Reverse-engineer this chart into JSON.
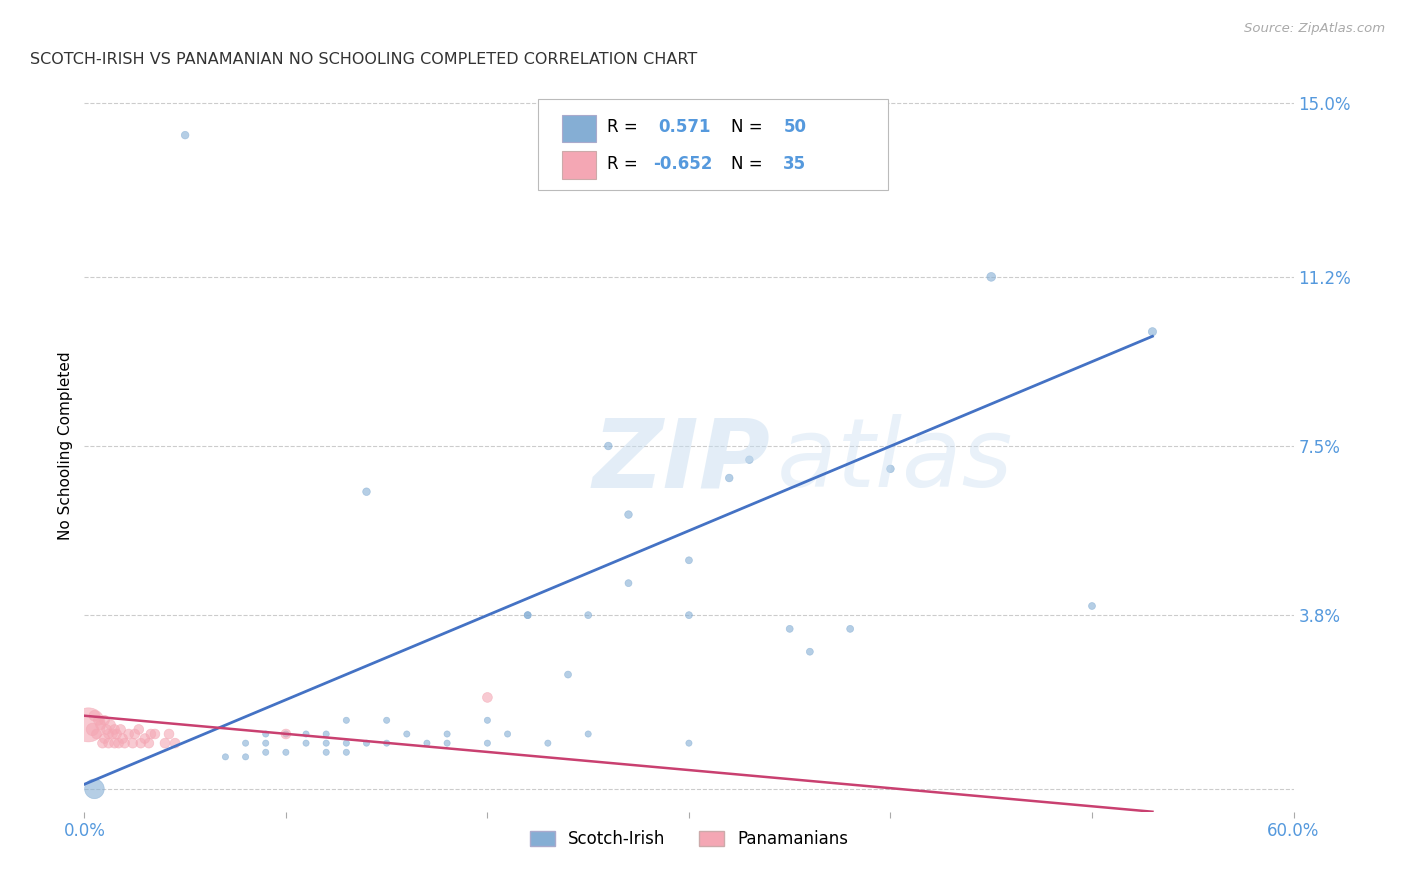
{
  "title": "SCOTCH-IRISH VS PANAMANIAN NO SCHOOLING COMPLETED CORRELATION CHART",
  "source": "Source: ZipAtlas.com",
  "ylabel": "No Schooling Completed",
  "xlim": [
    0.0,
    0.6
  ],
  "ylim": [
    -0.005,
    0.155
  ],
  "ytick_vals": [
    0.0,
    0.038,
    0.075,
    0.112,
    0.15
  ],
  "ytick_labels": [
    "",
    "3.8%",
    "7.5%",
    "11.2%",
    "15.0%"
  ],
  "xtick_vals": [
    0.0,
    0.1,
    0.2,
    0.3,
    0.4,
    0.5,
    0.6
  ],
  "xtick_labels": [
    "0.0%",
    "",
    "",
    "",
    "",
    "",
    "60.0%"
  ],
  "grid_color": "#cccccc",
  "background_color": "#ffffff",
  "legend_R1": "R =  0.571",
  "legend_N1": "N = 50",
  "legend_R2": "R = -0.652",
  "legend_N2": "N = 35",
  "blue_color": "#85aed4",
  "pink_color": "#f4a7b4",
  "blue_line_color": "#4472c4",
  "pink_line_color": "#c94070",
  "tick_color": "#5599dd",
  "scotch_irish_x": [
    0.005,
    0.05,
    0.07,
    0.08,
    0.08,
    0.09,
    0.09,
    0.09,
    0.1,
    0.1,
    0.11,
    0.11,
    0.12,
    0.12,
    0.12,
    0.13,
    0.13,
    0.13,
    0.14,
    0.14,
    0.15,
    0.15,
    0.16,
    0.17,
    0.18,
    0.18,
    0.2,
    0.2,
    0.21,
    0.22,
    0.22,
    0.23,
    0.24,
    0.25,
    0.25,
    0.26,
    0.27,
    0.27,
    0.3,
    0.3,
    0.3,
    0.32,
    0.33,
    0.35,
    0.36,
    0.38,
    0.4,
    0.45,
    0.5,
    0.53
  ],
  "scotch_irish_y": [
    0.0,
    0.143,
    0.007,
    0.007,
    0.01,
    0.008,
    0.01,
    0.012,
    0.012,
    0.008,
    0.01,
    0.012,
    0.008,
    0.01,
    0.012,
    0.01,
    0.008,
    0.015,
    0.065,
    0.01,
    0.01,
    0.015,
    0.012,
    0.01,
    0.012,
    0.01,
    0.01,
    0.015,
    0.012,
    0.038,
    0.038,
    0.01,
    0.025,
    0.038,
    0.012,
    0.075,
    0.045,
    0.06,
    0.038,
    0.01,
    0.05,
    0.068,
    0.072,
    0.035,
    0.03,
    0.035,
    0.07,
    0.112,
    0.04,
    0.1
  ],
  "scotch_irish_size": [
    200,
    30,
    20,
    20,
    20,
    20,
    20,
    20,
    20,
    20,
    20,
    20,
    20,
    20,
    20,
    20,
    20,
    20,
    30,
    20,
    20,
    20,
    20,
    20,
    20,
    20,
    20,
    20,
    20,
    25,
    25,
    20,
    25,
    25,
    20,
    30,
    25,
    30,
    25,
    20,
    25,
    30,
    30,
    25,
    25,
    25,
    30,
    40,
    25,
    35
  ],
  "panamanian_x": [
    0.002,
    0.004,
    0.005,
    0.006,
    0.007,
    0.008,
    0.009,
    0.01,
    0.01,
    0.011,
    0.012,
    0.012,
    0.013,
    0.014,
    0.015,
    0.015,
    0.016,
    0.017,
    0.018,
    0.019,
    0.02,
    0.022,
    0.024,
    0.025,
    0.027,
    0.028,
    0.03,
    0.032,
    0.033,
    0.035,
    0.04,
    0.042,
    0.045,
    0.1,
    0.2
  ],
  "panamanian_y": [
    0.014,
    0.013,
    0.016,
    0.012,
    0.015,
    0.014,
    0.01,
    0.011,
    0.015,
    0.013,
    0.01,
    0.012,
    0.014,
    0.012,
    0.01,
    0.013,
    0.012,
    0.01,
    0.013,
    0.011,
    0.01,
    0.012,
    0.01,
    0.012,
    0.013,
    0.01,
    0.011,
    0.01,
    0.012,
    0.012,
    0.01,
    0.012,
    0.01,
    0.012,
    0.02
  ],
  "panamanian_size": [
    600,
    80,
    60,
    50,
    50,
    50,
    50,
    50,
    50,
    50,
    50,
    50,
    50,
    50,
    50,
    50,
    50,
    50,
    50,
    50,
    50,
    50,
    50,
    50,
    50,
    50,
    50,
    50,
    50,
    50,
    50,
    50,
    50,
    50,
    50
  ],
  "blue_line_x": [
    0.0,
    0.53
  ],
  "blue_line_y": [
    0.001,
    0.099
  ],
  "pink_line_x": [
    0.0,
    0.53
  ],
  "pink_line_y": [
    0.016,
    -0.005
  ]
}
